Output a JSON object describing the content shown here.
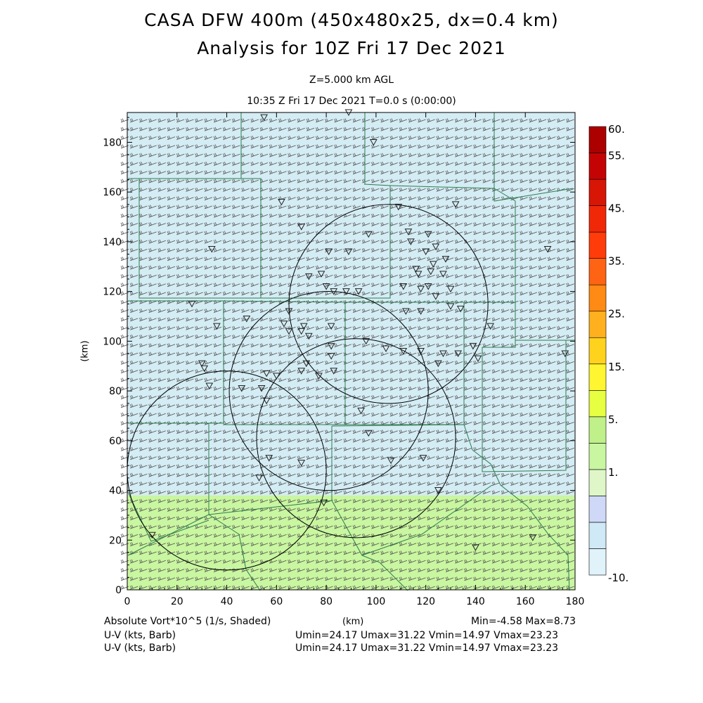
{
  "header": {
    "title_line1": "CASA DFW 400m (450x480x25, dx=0.4 km)",
    "title_line2": "Analysis for 10Z Fri 17 Dec 2021",
    "level": "Z=5.000 km AGL",
    "time": "10:35 Z Fri 17 Dec 2021    T=0.0 s (0:00:00)"
  },
  "footer": {
    "field1": "Absolute Vort*10^5 (1/s, Shaded)",
    "field2": "U-V (kts, Barb)",
    "field3": "U-V (kts, Barb)",
    "xunit": "(km)",
    "minmax": "Min=-4.58 Max=8.73",
    "uv1": "Umin=24.17 Umax=31.22 Vmin=14.97 Vmax=23.23",
    "uv2": "Umin=24.17 Umax=31.22 Vmin=14.97 Vmax=23.23"
  },
  "colors": {
    "shade_low": "#d4ecf4",
    "shade_high": "#c9f6a0",
    "county_lines": "#2e7d4f",
    "barbs": "#505050"
  },
  "chart_data": {
    "type": "heatmap",
    "title": "CASA DFW 400m (450x480x25, dx=0.4 km)",
    "subtitle": "Analysis for 10Z Fri 17 Dec 2021",
    "xlabel": "",
    "ylabel": "(km)",
    "xlim": [
      0,
      180
    ],
    "ylim": [
      0,
      192
    ],
    "x_ticks": [
      0,
      20,
      40,
      60,
      80,
      100,
      120,
      140,
      160,
      180
    ],
    "y_ticks": [
      0,
      20,
      40,
      60,
      80,
      100,
      120,
      140,
      160,
      180
    ],
    "field": "Absolute Vort*10^5 (1/s, Shaded)",
    "field_min": -4.58,
    "field_max": 8.73,
    "shaded_regions": [
      {
        "y_range": [
          0,
          38
        ],
        "color_index": 4
      },
      {
        "y_range": [
          38,
          192
        ],
        "color_index": 1
      }
    ],
    "colorbar": {
      "labels": [
        {
          "text": "60.",
          "value": 60
        },
        {
          "text": "55.",
          "value": 55
        },
        {
          "text": "45.",
          "value": 45
        },
        {
          "text": "35.",
          "value": 35
        },
        {
          "text": "25.",
          "value": 25
        },
        {
          "text": "15.",
          "value": 15
        },
        {
          "text": "5.",
          "value": 5
        },
        {
          "text": "1.",
          "value": 1
        },
        {
          "text": "-10.",
          "value": -10
        }
      ],
      "colors": [
        "#e0f2fa",
        "#cfe9f6",
        "#cfd8f6",
        "#dff6c8",
        "#c9f6a0",
        "#bff08a",
        "#e6ff40",
        "#fff530",
        "#ffd21e",
        "#ffb01e",
        "#ff8a14",
        "#ff6414",
        "#ff3c0a",
        "#f02808",
        "#d81606",
        "#c40404",
        "#ac0000"
      ]
    },
    "radar_circles_km": [
      {
        "cx": 105,
        "cy": 115,
        "r": 40
      },
      {
        "cx": 81,
        "cy": 80,
        "r": 40
      },
      {
        "cx": 92,
        "cy": 61,
        "r": 40
      },
      {
        "cx": 40,
        "cy": 48,
        "r": 40
      }
    ],
    "station_markers_km": [
      [
        55,
        190
      ],
      [
        89,
        192
      ],
      [
        99,
        180
      ],
      [
        62,
        156
      ],
      [
        70,
        146
      ],
      [
        34,
        137
      ],
      [
        81,
        136
      ],
      [
        89,
        136
      ],
      [
        97,
        143
      ],
      [
        109,
        154
      ],
      [
        113,
        144
      ],
      [
        114,
        140
      ],
      [
        121,
        143
      ],
      [
        124,
        138
      ],
      [
        120,
        136
      ],
      [
        128,
        133
      ],
      [
        132,
        155
      ],
      [
        123,
        131
      ],
      [
        122,
        128
      ],
      [
        116,
        129
      ],
      [
        127,
        127
      ],
      [
        117,
        127
      ],
      [
        73,
        126
      ],
      [
        78,
        127
      ],
      [
        80,
        122
      ],
      [
        83,
        120
      ],
      [
        88,
        120
      ],
      [
        93,
        120
      ],
      [
        111,
        122
      ],
      [
        118,
        121
      ],
      [
        121,
        122
      ],
      [
        130,
        121
      ],
      [
        112,
        112
      ],
      [
        118,
        112
      ],
      [
        130,
        114
      ],
      [
        134,
        113
      ],
      [
        65,
        112
      ],
      [
        63,
        107
      ],
      [
        71,
        106
      ],
      [
        70,
        104
      ],
      [
        73,
        102
      ],
      [
        65,
        104
      ],
      [
        82,
        106
      ],
      [
        26,
        115
      ],
      [
        36,
        106
      ],
      [
        48,
        109
      ],
      [
        82,
        98
      ],
      [
        96,
        100
      ],
      [
        104,
        97
      ],
      [
        111,
        96
      ],
      [
        118,
        96
      ],
      [
        127,
        95
      ],
      [
        133,
        95
      ],
      [
        139,
        98
      ],
      [
        141,
        93
      ],
      [
        176,
        95
      ],
      [
        72,
        91
      ],
      [
        82,
        94
      ],
      [
        70,
        88
      ],
      [
        77,
        86
      ],
      [
        56,
        87
      ],
      [
        60,
        86
      ],
      [
        83,
        88
      ],
      [
        31,
        89
      ],
      [
        30,
        91
      ],
      [
        33,
        82
      ],
      [
        46,
        81
      ],
      [
        54,
        81
      ],
      [
        56,
        76
      ],
      [
        94,
        72
      ],
      [
        97,
        63
      ],
      [
        57,
        53
      ],
      [
        70,
        51
      ],
      [
        106,
        52
      ],
      [
        119,
        53
      ],
      [
        53,
        45
      ],
      [
        79,
        35
      ],
      [
        125,
        40
      ],
      [
        10,
        22
      ],
      [
        140,
        17
      ],
      [
        163,
        21
      ],
      [
        169,
        137
      ],
      [
        146,
        106
      ],
      [
        124,
        118
      ],
      [
        125,
        91
      ]
    ]
  }
}
